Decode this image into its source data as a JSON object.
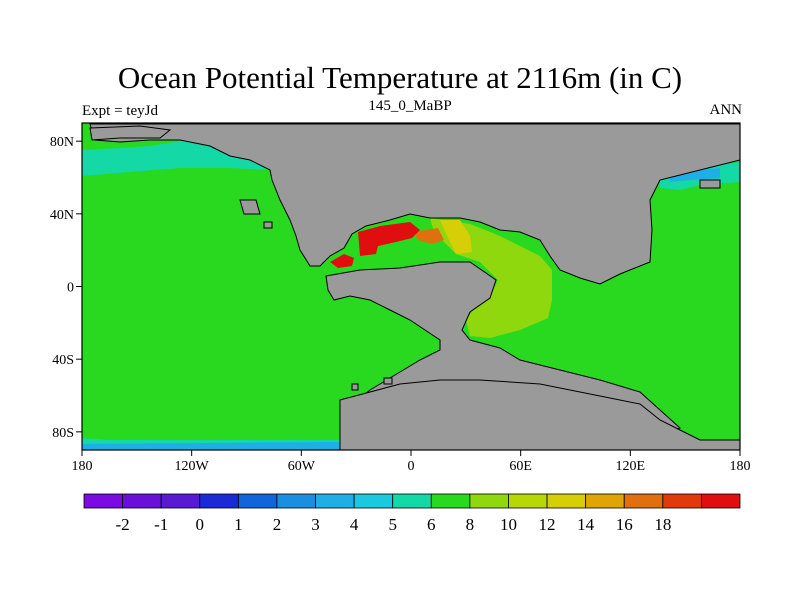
{
  "title": "Ocean Potential Temperature at 2116m (in C)",
  "subtitle_left": "Expt = teyJd",
  "subtitle_center": "145_0_MaBP",
  "subtitle_right": "ANN",
  "x_ticks": [
    {
      "lon": -180,
      "label": "180"
    },
    {
      "lon": -120,
      "label": "120W"
    },
    {
      "lon": -60,
      "label": "60W"
    },
    {
      "lon": 0,
      "label": "0"
    },
    {
      "lon": 60,
      "label": "60E"
    },
    {
      "lon": 120,
      "label": "120E"
    },
    {
      "lon": 180,
      "label": "180"
    }
  ],
  "y_ticks": [
    {
      "lat": 80,
      "label": "80N"
    },
    {
      "lat": 40,
      "label": "40N"
    },
    {
      "lat": 0,
      "label": "0"
    },
    {
      "lat": -40,
      "label": "40S"
    },
    {
      "lat": -80,
      "label": "80S"
    }
  ],
  "colorbar": {
    "colors": [
      "#7b0be0",
      "#6a0fd8",
      "#5a1ad2",
      "#1a2bd6",
      "#1164d9",
      "#1a8ee0",
      "#20aee6",
      "#1cc8e0",
      "#14d8a6",
      "#28d920",
      "#8fd80e",
      "#b8d806",
      "#d6cf08",
      "#e0a408",
      "#e06f10",
      "#e03a0a",
      "#e00e0e"
    ],
    "labels": [
      "-2",
      "-1",
      "0",
      "1",
      "2",
      "3",
      "4",
      "5",
      "6",
      "8",
      "10",
      "12",
      "14",
      "16",
      "18"
    ]
  },
  "colors": {
    "land": "#9a9a9a",
    "ocean_deep": "#28d920",
    "cold_arctic": "#20aee6",
    "cool_teal": "#14d8a6",
    "warm_tethys": "#8fd80e",
    "warm_yellow": "#d6cf08",
    "hot_orange": "#e06f10",
    "hot_red": "#e00e0e"
  }
}
